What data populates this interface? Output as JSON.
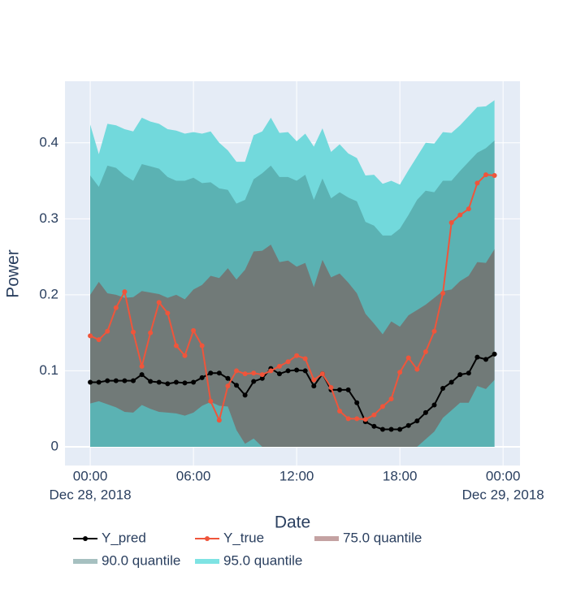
{
  "chart_data": {
    "type": "line",
    "xlabel": "Date",
    "ylabel": "Power",
    "x": [
      "2018-12-28T00:00",
      "2018-12-28T00:30",
      "2018-12-28T01:00",
      "2018-12-28T01:30",
      "2018-12-28T02:00",
      "2018-12-28T02:30",
      "2018-12-28T03:00",
      "2018-12-28T03:30",
      "2018-12-28T04:00",
      "2018-12-28T04:30",
      "2018-12-28T05:00",
      "2018-12-28T05:30",
      "2018-12-28T06:00",
      "2018-12-28T06:30",
      "2018-12-28T07:00",
      "2018-12-28T07:30",
      "2018-12-28T08:00",
      "2018-12-28T08:30",
      "2018-12-28T09:00",
      "2018-12-28T09:30",
      "2018-12-28T10:00",
      "2018-12-28T10:30",
      "2018-12-28T11:00",
      "2018-12-28T11:30",
      "2018-12-28T12:00",
      "2018-12-28T12:30",
      "2018-12-28T13:00",
      "2018-12-28T13:30",
      "2018-12-28T14:00",
      "2018-12-28T14:30",
      "2018-12-28T15:00",
      "2018-12-28T15:30",
      "2018-12-28T16:00",
      "2018-12-28T16:30",
      "2018-12-28T17:00",
      "2018-12-28T17:30",
      "2018-12-28T18:00",
      "2018-12-28T18:30",
      "2018-12-28T19:00",
      "2018-12-28T19:30",
      "2018-12-28T20:00",
      "2018-12-28T20:30",
      "2018-12-28T21:00",
      "2018-12-28T21:30",
      "2018-12-28T22:00",
      "2018-12-28T22:30",
      "2018-12-28T23:00",
      "2018-12-28T23:30"
    ],
    "xlim": [
      "2018-12-27T22:32",
      "2018-12-29T00:59"
    ],
    "xticks": [
      {
        "value": "2018-12-28T00:00",
        "label": "00:00",
        "date": "Dec 28, 2018"
      },
      {
        "value": "2018-12-28T06:00",
        "label": "06:00"
      },
      {
        "value": "2018-12-28T12:00",
        "label": "12:00"
      },
      {
        "value": "2018-12-28T18:00",
        "label": "18:00"
      },
      {
        "value": "2018-12-29T00:00",
        "label": "00:00",
        "date": "Dec 29, 2018"
      }
    ],
    "ylim": [
      -0.0246,
      0.481
    ],
    "yticks": [
      0,
      0.1,
      0.2,
      0.3,
      0.4
    ],
    "grid": true,
    "bands": [
      {
        "name": "95.0 quantile",
        "color": "#7ee3e3",
        "fill": "#72d9dc",
        "lower": [
          0,
          0,
          0,
          0,
          0,
          0,
          0,
          0,
          0,
          0,
          0,
          0,
          0,
          0,
          0,
          0,
          0,
          0,
          0,
          0,
          0,
          0,
          0,
          0,
          0,
          0,
          0,
          0,
          0,
          0,
          0,
          0,
          0,
          0,
          0,
          0,
          0,
          0,
          0,
          0,
          0,
          0,
          0,
          0,
          0,
          0,
          0,
          0
        ],
        "upper": [
          0.424,
          0.385,
          0.425,
          0.423,
          0.418,
          0.415,
          0.433,
          0.428,
          0.425,
          0.418,
          0.416,
          0.412,
          0.414,
          0.412,
          0.415,
          0.4,
          0.39,
          0.375,
          0.375,
          0.41,
          0.415,
          0.433,
          0.413,
          0.414,
          0.402,
          0.412,
          0.395,
          0.419,
          0.388,
          0.398,
          0.386,
          0.38,
          0.357,
          0.358,
          0.346,
          0.35,
          0.345,
          0.364,
          0.382,
          0.4,
          0.399,
          0.414,
          0.413,
          0.423,
          0.435,
          0.447,
          0.448,
          0.456
        ]
      },
      {
        "name": "90.0 quantile",
        "color": "#a6c0c0",
        "fill": "#5bb2b3",
        "lower": [
          0,
          0,
          0,
          0,
          0,
          0,
          0,
          0,
          0,
          0,
          0,
          0,
          0,
          0,
          0,
          0,
          0,
          0,
          0,
          0,
          0,
          0,
          0,
          0,
          0,
          0,
          0,
          0,
          0,
          0,
          0,
          0,
          0,
          0,
          0,
          0,
          0,
          0,
          0,
          0,
          0,
          0,
          0,
          0,
          0,
          0,
          0,
          0
        ],
        "upper": [
          0.357,
          0.342,
          0.37,
          0.367,
          0.357,
          0.35,
          0.372,
          0.369,
          0.366,
          0.355,
          0.35,
          0.35,
          0.354,
          0.347,
          0.348,
          0.34,
          0.338,
          0.32,
          0.325,
          0.352,
          0.36,
          0.37,
          0.355,
          0.355,
          0.35,
          0.358,
          0.325,
          0.353,
          0.327,
          0.335,
          0.328,
          0.323,
          0.296,
          0.291,
          0.278,
          0.278,
          0.287,
          0.305,
          0.325,
          0.337,
          0.335,
          0.35,
          0.35,
          0.363,
          0.375,
          0.387,
          0.393,
          0.403
        ]
      },
      {
        "name": "75.0 quantile",
        "color": "#c4a2a2",
        "fill": "#717a78",
        "lower": [
          0.057,
          0.06,
          0.056,
          0.052,
          0.046,
          0.045,
          0.055,
          0.05,
          0.046,
          0.045,
          0.044,
          0.041,
          0.045,
          0.054,
          0.059,
          0.054,
          0.053,
          0.022,
          0.004,
          0.011,
          0,
          0,
          0,
          0,
          0,
          0,
          0,
          0,
          0,
          0,
          0,
          0,
          0,
          0,
          0,
          0,
          0,
          0,
          0,
          0.01,
          0.02,
          0.038,
          0.048,
          0.058,
          0.058,
          0.08,
          0.076,
          0.088
        ],
        "upper": [
          0.2,
          0.217,
          0.202,
          0.2,
          0.196,
          0.197,
          0.205,
          0.203,
          0.201,
          0.196,
          0.2,
          0.194,
          0.207,
          0.213,
          0.225,
          0.222,
          0.235,
          0.22,
          0.233,
          0.257,
          0.258,
          0.266,
          0.243,
          0.245,
          0.237,
          0.242,
          0.21,
          0.246,
          0.223,
          0.228,
          0.216,
          0.202,
          0.175,
          0.162,
          0.148,
          0.165,
          0.158,
          0.173,
          0.18,
          0.187,
          0.196,
          0.205,
          0.207,
          0.218,
          0.225,
          0.243,
          0.242,
          0.26
        ]
      }
    ],
    "series": [
      {
        "name": "Y_pred",
        "color": "#000000",
        "values": [
          0.085,
          0.085,
          0.087,
          0.087,
          0.087,
          0.087,
          0.095,
          0.086,
          0.085,
          0.083,
          0.085,
          0.084,
          0.085,
          0.091,
          0.097,
          0.097,
          0.09,
          0.081,
          0.068,
          0.086,
          0.09,
          0.103,
          0.096,
          0.1,
          0.101,
          0.1,
          0.08,
          0.096,
          0.075,
          0.075,
          0.075,
          0.058,
          0.033,
          0.027,
          0.023,
          0.023,
          0.023,
          0.028,
          0.034,
          0.045,
          0.055,
          0.077,
          0.085,
          0.095,
          0.097,
          0.118,
          0.115,
          0.122
        ]
      },
      {
        "name": "Y_true",
        "color": "#ef553b",
        "values": [
          0.146,
          0.141,
          0.152,
          0.183,
          0.204,
          0.151,
          0.106,
          0.15,
          0.19,
          0.176,
          0.133,
          0.12,
          0.153,
          0.133,
          0.06,
          0.035,
          0.08,
          0.1,
          0.096,
          0.097,
          0.095,
          0.1,
          0.106,
          0.112,
          0.12,
          0.116,
          0.088,
          0.096,
          0.078,
          0.047,
          0.037,
          0.037,
          0.036,
          0.042,
          0.053,
          0.063,
          0.098,
          0.117,
          0.102,
          0.125,
          0.152,
          0.202,
          0.295,
          0.305,
          0.313,
          0.347,
          0.358,
          0.357
        ]
      }
    ]
  }
}
